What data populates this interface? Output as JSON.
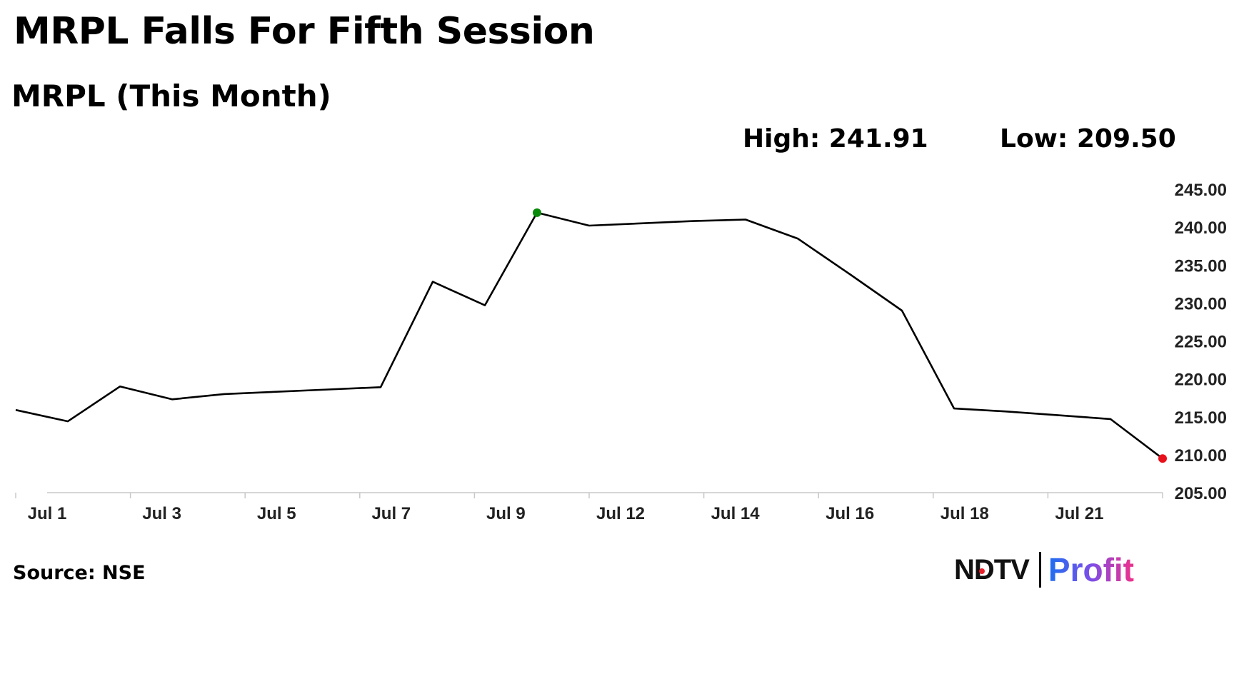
{
  "header": {
    "title": "MRPL Falls For Fifth Session",
    "subtitle": "MRPL (This Month)",
    "high": "High: 241.91",
    "low": "Low: 209.50"
  },
  "footer": {
    "source": "Source: NSE",
    "logo_ndtv": "NDTV",
    "logo_profit": "Profit"
  },
  "chart_data": {
    "type": "line",
    "x_tick_labels": [
      "Jul 1",
      "Jul 3",
      "Jul 5",
      "Jul 7",
      "Jul 9",
      "Jul 12",
      "Jul 14",
      "Jul 16",
      "Jul 18",
      "Jul 21"
    ],
    "y_tick_labels": [
      "205.00",
      "210.00",
      "215.00",
      "220.00",
      "225.00",
      "230.00",
      "235.00",
      "240.00",
      "245.00"
    ],
    "ylim": [
      205,
      245
    ],
    "series": [
      {
        "color": "#000000",
        "values": [
          215.9,
          214.4,
          219.0,
          217.3,
          218.0,
          218.3,
          218.6,
          218.9,
          232.8,
          229.7,
          241.91,
          240.2,
          240.5,
          240.8,
          241.0,
          238.5,
          233.8,
          229.0,
          216.1,
          215.7,
          215.2,
          214.7,
          209.5
        ]
      }
    ],
    "high_point": {
      "index": 10,
      "value": 241.91,
      "color": "#0a8a0a"
    },
    "low_point": {
      "index": 22,
      "value": 209.5,
      "color": "#e8101a"
    },
    "grid": false,
    "axis_color": "#c8c8c8"
  }
}
